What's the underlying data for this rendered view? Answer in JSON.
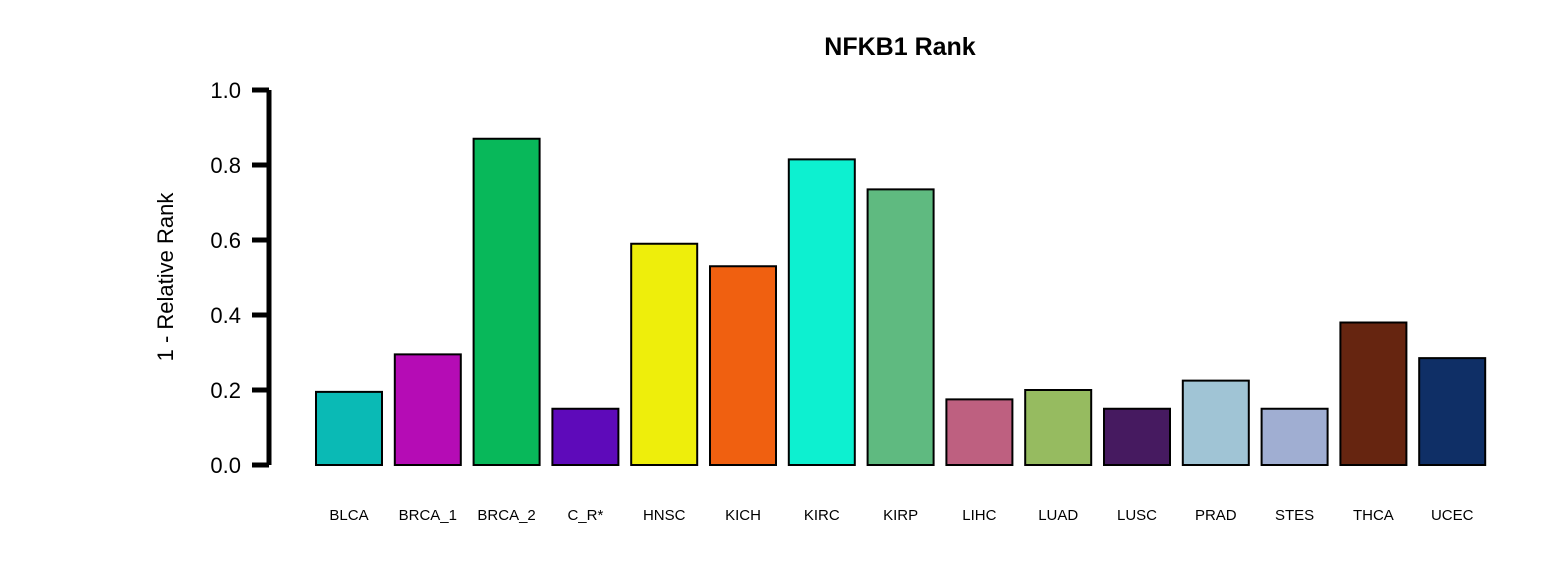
{
  "chart_data": {
    "type": "bar",
    "title": "NFKB1 Rank",
    "xlabel": "",
    "ylabel": "1 - Relative Rank",
    "ylim": [
      0,
      1.0
    ],
    "yticks": [
      "0.0",
      "0.2",
      "0.4",
      "0.6",
      "0.8",
      "1.0"
    ],
    "grid": false,
    "legend": "none",
    "categories": [
      "BLCA",
      "BRCA_1",
      "BRCA_2",
      "C_R*",
      "HNSC",
      "KICH",
      "KIRC",
      "KIRP",
      "LIHC",
      "LUAD",
      "LUSC",
      "PRAD",
      "STES",
      "THCA",
      "UCEC"
    ],
    "values": [
      0.195,
      0.295,
      0.87,
      0.15,
      0.59,
      0.53,
      0.815,
      0.735,
      0.175,
      0.2,
      0.15,
      0.225,
      0.15,
      0.38,
      0.285
    ],
    "colors": [
      "#0ABAB5",
      "#B50CB5",
      "#08B85A",
      "#5E0ABA",
      "#EEEE0B",
      "#F06010",
      "#0DF0D0",
      "#5FBA80",
      "#BE6080",
      "#96BB60",
      "#461A60",
      "#A0C4D5",
      "#A0AED2",
      "#662510",
      "#0F2F66"
    ]
  }
}
